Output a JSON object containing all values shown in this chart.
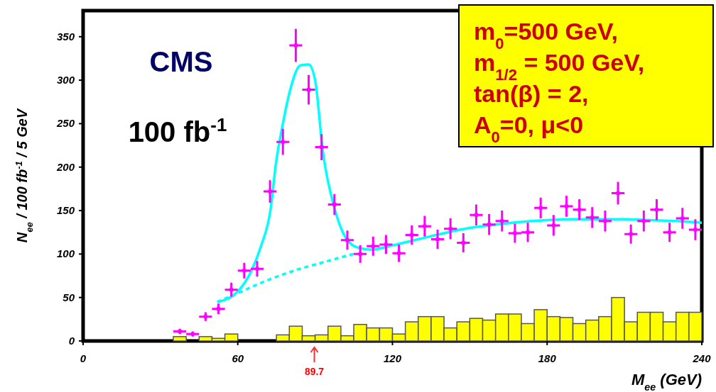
{
  "chart_data": {
    "type": "scatter",
    "xlabel": "M$_{ee}$ (GeV)",
    "ylabel": "N$_{ee}$ / 100 fb$^{-1}$ / 5 GeV",
    "xlim": [
      0,
      240
    ],
    "xticks": [
      0,
      60,
      120,
      180,
      240
    ],
    "ylim": [
      0,
      380
    ],
    "yticks": [
      0,
      50,
      100,
      150,
      200,
      250,
      300,
      350
    ],
    "grid": false,
    "annotations": [
      "CMS",
      "100 fb$^{-1}$",
      "m$_{0}$=500 GeV,",
      "m$_{1/2}$ = 500 GeV,",
      "tan(β) = 2,",
      "A$_{0}$=0, μ<0",
      {
        "text": "89.7",
        "x": 89.7,
        "y": 0
      }
    ],
    "series": [
      {
        "type": "histogram",
        "color": "#ffff00",
        "bins": [
          35,
          40,
          45,
          50,
          55,
          60,
          65,
          70,
          75,
          80,
          85,
          90,
          95,
          100,
          105,
          110,
          115,
          120,
          125,
          130,
          135,
          140,
          145,
          150,
          155,
          160,
          165,
          170,
          175,
          180,
          185,
          190,
          195,
          200,
          205,
          210,
          215,
          220,
          225,
          230,
          235,
          240
        ],
        "values": [
          5,
          0,
          5,
          3,
          8,
          0,
          0,
          0,
          7,
          17,
          6,
          7,
          17,
          6,
          19,
          15,
          15,
          8,
          22,
          28,
          28,
          15,
          22,
          26,
          24,
          31,
          31,
          20,
          36,
          28,
          27,
          20,
          24,
          28,
          50,
          22,
          33,
          33,
          22,
          33,
          33
        ]
      },
      {
        "type": "line",
        "color": "#00ffff",
        "line_style": "dashed",
        "x": [
          52,
          60,
          70,
          83,
          95,
          101,
          106
        ],
        "values": [
          45,
          55,
          68,
          82,
          92,
          97,
          101
        ]
      },
      {
        "type": "line",
        "color": "#00ffff",
        "line_style": "solid",
        "x": [
          52.5,
          60,
          65.5,
          69,
          72.8,
          74.7,
          77.5,
          80,
          84.3,
          87.5,
          90,
          93,
          97.5,
          100.3,
          106,
          112,
          120,
          130,
          140,
          150,
          160,
          170,
          180,
          190,
          200,
          210,
          220,
          230,
          240
        ],
        "values": [
          45,
          57,
          82,
          109,
          153,
          202,
          250,
          285,
          317,
          318,
          300,
          218,
          153,
          128,
          108,
          105,
          110,
          117,
          124,
          130,
          134,
          137,
          139,
          140,
          140,
          140,
          139,
          138,
          136
        ]
      },
      {
        "color": "#ff00ff",
        "x": [
          37.5,
          42.5,
          47.5,
          52.5,
          57.5,
          62.5,
          67.5,
          72.5,
          77.5,
          82.5,
          87.5,
          92.5,
          97.5,
          102.5,
          107.5,
          112.5,
          117.5,
          122.5,
          127.5,
          132.5,
          137.5,
          142.5,
          147.5,
          152.5,
          157.5,
          162.5,
          167.5,
          172.5,
          177.5,
          182.5,
          187.5,
          192.5,
          197.5,
          202.5,
          207.5,
          212.5,
          217.5,
          222.5,
          227.5,
          232.5,
          237.5
        ],
        "values": [
          11,
          8,
          28,
          37,
          59,
          81,
          83,
          172,
          229,
          340,
          289,
          223,
          157,
          116,
          100,
          109,
          111,
          101,
          122,
          132,
          117,
          129,
          113,
          145,
          134,
          138,
          124,
          125,
          153,
          133,
          155,
          151,
          142,
          138,
          170,
          123,
          138,
          151,
          125,
          141,
          128
        ],
        "errors": [
          3,
          3,
          5,
          6,
          8,
          9,
          9,
          13,
          15,
          19,
          17,
          15,
          12,
          11,
          10,
          11,
          11,
          10,
          11,
          12,
          11,
          12,
          11,
          12,
          12,
          12,
          11,
          11,
          12,
          12,
          12,
          12,
          12,
          12,
          13,
          11,
          12,
          12,
          11,
          12,
          12
        ],
        "xerrors": [
          2.5,
          2.5,
          2.5,
          2.5,
          2.5,
          2.5,
          2.5,
          2.5,
          2.5,
          2.5,
          2.5,
          2.5,
          2.5,
          2.5,
          2.5,
          2.5,
          2.5,
          2.5,
          2.5,
          2.5,
          2.5,
          2.5,
          2.5,
          2.5,
          2.5,
          2.5,
          2.5,
          2.5,
          2.5,
          2.5,
          2.5,
          2.5,
          2.5,
          2.5,
          2.5,
          2.5,
          2.5,
          2.5,
          2.5,
          2.5,
          2.5
        ]
      }
    ]
  }
}
